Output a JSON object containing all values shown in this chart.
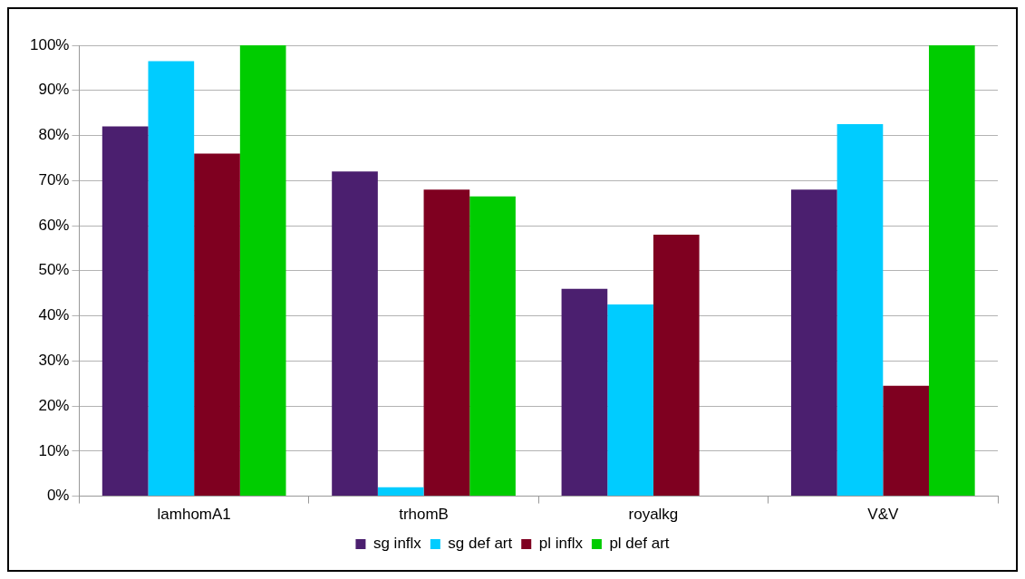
{
  "chart_data": {
    "type": "bar",
    "categories": [
      "lamhomA1",
      "trhomB",
      "royalkg",
      "V&V"
    ],
    "series": [
      {
        "name": "sg inflx",
        "color": "#4b1f6f",
        "values": [
          82,
          72,
          46,
          68
        ]
      },
      {
        "name": "sg def art",
        "color": "#00ccff",
        "values": [
          96.5,
          2,
          42.5,
          82.5
        ]
      },
      {
        "name": "pl inflx",
        "color": "#7f0020",
        "values": [
          76,
          68,
          58,
          24.5
        ]
      },
      {
        "name": "pl def art",
        "color": "#00cc00",
        "values": [
          100,
          66.5,
          0,
          100
        ]
      }
    ],
    "ylim": [
      0,
      100
    ],
    "yticks": [
      {
        "value": 0,
        "label": "0%"
      },
      {
        "value": 10,
        "label": "10%"
      },
      {
        "value": 20,
        "label": "20%"
      },
      {
        "value": 30,
        "label": "30%"
      },
      {
        "value": 40,
        "label": "40%"
      },
      {
        "value": 50,
        "label": "50%"
      },
      {
        "value": 60,
        "label": "60%"
      },
      {
        "value": 70,
        "label": "70%"
      },
      {
        "value": 80,
        "label": "80%"
      },
      {
        "value": 90,
        "label": "90%"
      },
      {
        "value": 100,
        "label": "100%"
      }
    ],
    "grid": "y",
    "legend": "bottom"
  }
}
